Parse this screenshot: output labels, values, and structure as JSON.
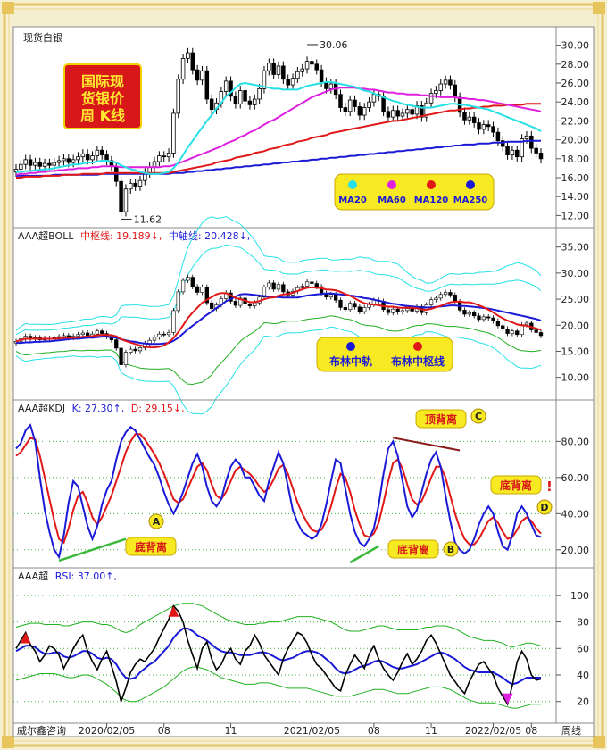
{
  "chart_data": [
    {
      "type": "candlestick",
      "title": "国际现货银价周 K线",
      "instrument_label": "现货白银",
      "y_ticks": [
        "30.00",
        "28.00",
        "26.00",
        "24.00",
        "22.00",
        "20.00",
        "18.00",
        "16.00",
        "14.00",
        "12.00"
      ],
      "ylim": [
        11,
        31
      ],
      "annotations": [
        {
          "label": "30.06",
          "value": 30.06
        },
        {
          "label": "11.62",
          "value": 11.62
        }
      ],
      "legend": [
        "MA20",
        "MA60",
        "MA120",
        "MA250"
      ],
      "series_colors": {
        "MA20": "#26e0e6",
        "MA60": "#e020e0",
        "MA120": "#e01818",
        "MA250": "#1a1ad6"
      },
      "close": [
        16.9,
        17.4,
        17.9,
        17.3,
        17.6,
        17.2,
        17.5,
        17.3,
        17.6,
        17.8,
        18.0,
        17.6,
        17.9,
        18.2,
        18.5,
        17.9,
        18.3,
        18.9,
        18.4,
        17.8,
        17.2,
        15.6,
        12.4,
        14.8,
        15.4,
        15.1,
        15.7,
        16.5,
        17.1,
        17.7,
        18.3,
        18.2,
        18.6,
        22.8,
        26.4,
        28.6,
        29.2,
        27.4,
        26.3,
        27.3,
        24.3,
        23.2,
        23.9,
        25.1,
        26.2,
        24.6,
        23.8,
        25.2,
        24.1,
        23.7,
        24.3,
        25.4,
        27.3,
        28.1,
        26.9,
        27.8,
        26.4,
        25.8,
        26.5,
        27.2,
        27.5,
        28.3,
        28.0,
        27.4,
        26.1,
        25.4,
        25.9,
        24.8,
        23.4,
        23.0,
        24.2,
        23.5,
        22.6,
        23.4,
        24.0,
        24.8,
        24.6,
        23.0,
        22.4,
        23.1,
        22.5,
        22.8,
        23.2,
        22.7,
        23.6,
        22.4,
        23.9,
        24.9,
        25.2,
        25.9,
        26.3,
        25.8,
        24.5,
        22.9,
        22.1,
        22.4,
        21.8,
        21.1,
        21.6,
        21.4,
        20.8,
        19.9,
        19.3,
        18.4,
        18.9,
        18.2,
        20.1,
        20.4,
        19.1,
        18.6,
        18.0
      ],
      "ma20": [
        16.6,
        16.6,
        16.7,
        16.7,
        16.8,
        16.8,
        16.9,
        16.9,
        17.0,
        17.1,
        17.2,
        17.3,
        17.4,
        17.4,
        17.5,
        17.6,
        17.6,
        17.7,
        17.8,
        17.8,
        17.7,
        17.6,
        17.3,
        17.1,
        16.9,
        16.8,
        16.6,
        16.5,
        16.4,
        16.4,
        16.4,
        16.5,
        16.6,
        17.0,
        17.6,
        18.4,
        19.2,
        19.9,
        20.6,
        21.3,
        22.0,
        22.6,
        23.3,
        23.9,
        24.6,
        25.0,
        25.5,
        25.9,
        26.0,
        25.9,
        25.8,
        25.7,
        25.6,
        25.5,
        25.4,
        25.4,
        25.3,
        25.3,
        25.3,
        25.3,
        25.5,
        25.7,
        25.8,
        25.9,
        26.0,
        26.1,
        26.1,
        26.0,
        25.9,
        25.8,
        25.7,
        25.6,
        25.4,
        25.2,
        25.1,
        24.9,
        24.7,
        24.5,
        24.3,
        24.1,
        24.0,
        23.8,
        23.7,
        23.6,
        23.5,
        23.4,
        23.4,
        23.4,
        23.5,
        23.6,
        23.7,
        23.8,
        23.8,
        23.7,
        23.7,
        23.6,
        23.5,
        23.4,
        23.3,
        23.2,
        23.0,
        22.8,
        22.6,
        22.4,
        22.2,
        22.0,
        21.8,
        21.6,
        21.4,
        21.2,
        20.9
      ],
      "ma60": [
        16.3,
        16.4,
        16.4,
        16.5,
        16.5,
        16.6,
        16.6,
        16.7,
        16.7,
        16.8,
        16.8,
        16.9,
        16.9,
        17.0,
        17.0,
        17.0,
        17.1,
        17.1,
        17.2,
        17.2,
        17.2,
        17.2,
        17.1,
        17.1,
        17.1,
        17.1,
        17.1,
        17.1,
        17.1,
        17.1,
        17.1,
        17.2,
        17.2,
        17.3,
        17.5,
        17.7,
        17.9,
        18.1,
        18.3,
        18.5,
        18.7,
        18.9,
        19.1,
        19.3,
        19.6,
        19.8,
        20.0,
        20.3,
        20.5,
        20.8,
        21.0,
        21.3,
        21.6,
        21.9,
        22.1,
        22.4,
        22.7,
        23.0,
        23.3,
        23.6,
        23.9,
        24.2,
        24.5,
        24.7,
        24.9,
        25.1,
        25.3,
        25.4,
        25.5,
        25.5,
        25.5,
        25.5,
        25.4,
        25.4,
        25.3,
        25.3,
        25.2,
        25.1,
        25.0,
        25.0,
        24.9,
        24.9,
        24.8,
        24.8,
        24.8,
        24.7,
        24.7,
        24.6,
        24.6,
        24.5,
        24.5,
        24.5,
        24.5,
        24.4,
        24.4,
        24.3,
        24.3,
        24.2,
        24.2,
        24.1,
        24.0,
        23.9,
        23.8,
        23.7,
        23.6,
        23.5,
        23.4,
        23.3,
        23.2,
        23.1,
        23.0
      ],
      "ma120": [
        16.0,
        16.0,
        16.1,
        16.1,
        16.1,
        16.1,
        16.2,
        16.2,
        16.2,
        16.2,
        16.3,
        16.3,
        16.3,
        16.3,
        16.4,
        16.4,
        16.4,
        16.4,
        16.4,
        16.5,
        16.5,
        16.5,
        16.5,
        16.5,
        16.5,
        16.5,
        16.5,
        16.5,
        16.5,
        16.5,
        16.5,
        16.5,
        16.5,
        16.6,
        16.7,
        16.8,
        16.9,
        17.0,
        17.1,
        17.2,
        17.3,
        17.4,
        17.6,
        17.7,
        17.8,
        17.9,
        18.1,
        18.2,
        18.3,
        18.4,
        18.6,
        18.7,
        18.8,
        19.0,
        19.1,
        19.2,
        19.4,
        19.5,
        19.6,
        19.8,
        19.9,
        20.0,
        20.2,
        20.3,
        20.4,
        20.5,
        20.7,
        20.8,
        20.9,
        21.0,
        21.1,
        21.2,
        21.3,
        21.4,
        21.5,
        21.6,
        21.7,
        21.8,
        21.9,
        22.0,
        22.0,
        22.1,
        22.2,
        22.3,
        22.4,
        22.5,
        22.6,
        22.7,
        22.8,
        22.9,
        23.0,
        23.1,
        23.1,
        23.2,
        23.3,
        23.3,
        23.4,
        23.4,
        23.5,
        23.5,
        23.6,
        23.6,
        23.6,
        23.7,
        23.7,
        23.7,
        23.7,
        23.8,
        23.8,
        23.8,
        23.8
      ],
      "ma250": [
        16.2,
        16.2,
        16.2,
        16.2,
        16.2,
        16.2,
        16.2,
        16.2,
        16.3,
        16.3,
        16.3,
        16.3,
        16.3,
        16.3,
        16.3,
        16.3,
        16.3,
        16.3,
        16.4,
        16.4,
        16.4,
        16.4,
        16.4,
        16.4,
        16.4,
        16.4,
        16.4,
        16.4,
        16.4,
        16.4,
        16.4,
        16.4,
        16.4,
        16.5,
        16.5,
        16.5,
        16.6,
        16.6,
        16.7,
        16.7,
        16.8,
        16.8,
        16.9,
        16.9,
        17.0,
        17.0,
        17.1,
        17.1,
        17.2,
        17.2,
        17.3,
        17.3,
        17.4,
        17.4,
        17.5,
        17.5,
        17.6,
        17.6,
        17.7,
        17.7,
        17.8,
        17.8,
        17.9,
        17.9,
        18.0,
        18.0,
        18.1,
        18.1,
        18.2,
        18.2,
        18.3,
        18.3,
        18.4,
        18.4,
        18.5,
        18.5,
        18.6,
        18.6,
        18.7,
        18.7,
        18.8,
        18.8,
        18.9,
        18.9,
        19.0,
        19.0,
        19.1,
        19.1,
        19.2,
        19.2,
        19.3,
        19.3,
        19.4,
        19.4,
        19.5,
        19.5,
        19.5,
        19.6,
        19.6,
        19.6,
        19.7,
        19.7,
        19.7,
        19.8,
        19.8,
        19.8,
        19.8,
        19.9,
        19.9,
        19.9,
        19.9
      ]
    },
    {
      "type": "line",
      "indicator_label": "AAA超BOLL",
      "mid_label": "中枢线: 19.189↓,",
      "axis_label": "中轴线: 20.428↓,",
      "y_ticks": [
        "35.00",
        "30.00",
        "25.00",
        "20.00",
        "15.00",
        "10.00"
      ],
      "ylim": [
        6,
        37
      ],
      "legend": [
        "布林中轨",
        "布林中枢线"
      ],
      "series_colors": {
        "中轨": "#1a1ad6",
        "中枢线": "#e01818",
        "上轨": "#26e0e6",
        "下轨": "#20b020"
      }
    },
    {
      "type": "line",
      "indicator_label": "AAA超KDJ",
      "k_label": "K: 27.30↑,",
      "d_label": "D: 29.15↓,",
      "y_ticks": [
        "80.00",
        "60.00",
        "40.00",
        "20.00"
      ],
      "ylim": [
        12,
        95
      ],
      "series_colors": {
        "K": "#1a1ad6",
        "D": "#e01818"
      },
      "annotations": [
        "底背离",
        "底背离",
        "顶背离",
        "底背离",
        "!",
        "A",
        "B",
        "C",
        "D"
      ],
      "K": [
        76,
        79,
        86,
        89,
        80,
        60,
        42,
        30,
        20,
        16,
        28,
        46,
        58,
        55,
        44,
        33,
        26,
        33,
        45,
        53,
        58,
        70,
        80,
        85,
        88,
        86,
        81,
        76,
        71,
        67,
        60,
        52,
        45,
        40,
        45,
        52,
        60,
        68,
        73,
        66,
        55,
        47,
        44,
        48,
        58,
        66,
        70,
        67,
        60,
        60,
        55,
        50,
        47,
        58,
        66,
        74,
        68,
        55,
        42,
        35,
        30,
        28,
        26,
        28,
        34,
        45,
        58,
        70,
        68,
        54,
        40,
        30,
        24,
        22,
        26,
        32,
        45,
        62,
        76,
        80,
        72,
        58,
        44,
        38,
        42,
        52,
        62,
        70,
        74,
        66,
        50,
        36,
        24,
        20,
        18,
        20,
        26,
        34,
        40,
        44,
        40,
        30,
        22,
        20,
        28,
        40,
        44,
        40,
        34,
        28,
        27
      ],
      "D": [
        72,
        74,
        78,
        82,
        81,
        72,
        60,
        48,
        36,
        26,
        24,
        32,
        42,
        50,
        52,
        46,
        38,
        34,
        38,
        44,
        50,
        58,
        66,
        74,
        80,
        84,
        84,
        81,
        77,
        73,
        68,
        62,
        55,
        48,
        46,
        48,
        54,
        60,
        66,
        68,
        64,
        56,
        50,
        48,
        52,
        58,
        64,
        66,
        64,
        62,
        59,
        55,
        52,
        54,
        59,
        65,
        67,
        62,
        54,
        46,
        40,
        35,
        31,
        30,
        31,
        36,
        44,
        54,
        62,
        60,
        52,
        42,
        34,
        28,
        27,
        29,
        35,
        46,
        58,
        68,
        70,
        65,
        56,
        48,
        45,
        47,
        53,
        60,
        66,
        66,
        60,
        50,
        40,
        32,
        26,
        23,
        23,
        26,
        31,
        36,
        38,
        35,
        30,
        26,
        27,
        31,
        36,
        38,
        36,
        32,
        29
      ]
    },
    {
      "type": "line",
      "indicator_label": "AAA超",
      "rsi_label": "RSI: 37.00↑,",
      "y_ticks": [
        "100",
        "80",
        "60",
        "40",
        "20"
      ],
      "ylim": [
        5,
        110
      ],
      "series_colors": {
        "RSI": "#000000",
        "MA": "#1a1ad6",
        "上轨": "#20b020",
        "下轨": "#20b020"
      },
      "x_ticks": [
        "2020/02/05",
        "08",
        "11",
        "2021/02/05",
        "08",
        "11",
        "2022/02/05",
        "08"
      ],
      "footer_left": "威尔鑫咨询",
      "footer_right": "周线",
      "RSI": [
        60,
        66,
        72,
        63,
        58,
        50,
        55,
        62,
        60,
        55,
        45,
        52,
        60,
        66,
        70,
        58,
        50,
        44,
        52,
        58,
        47,
        35,
        20,
        30,
        42,
        48,
        52,
        50,
        55,
        60,
        68,
        75,
        82,
        92,
        88,
        80,
        66,
        55,
        45,
        60,
        65,
        52,
        44,
        48,
        56,
        60,
        52,
        48,
        58,
        62,
        70,
        64,
        55,
        50,
        45,
        40,
        52,
        60,
        66,
        72,
        70,
        64,
        55,
        48,
        45,
        40,
        35,
        30,
        28,
        40,
        48,
        55,
        50,
        45,
        56,
        62,
        52,
        45,
        40,
        36,
        42,
        50,
        56,
        48,
        52,
        58,
        66,
        70,
        64,
        56,
        48,
        40,
        35,
        30,
        26,
        35,
        42,
        48,
        50,
        45,
        40,
        30,
        24,
        18,
        32,
        50,
        58,
        52,
        40,
        36,
        37
      ],
      "RSI_MA": [
        58,
        60,
        62,
        62,
        61,
        58,
        56,
        56,
        57,
        57,
        54,
        53,
        54,
        56,
        58,
        58,
        56,
        53,
        52,
        53,
        52,
        48,
        42,
        38,
        37,
        38,
        42,
        45,
        48,
        50,
        54,
        58,
        62,
        68,
        72,
        75,
        75,
        73,
        70,
        68,
        66,
        63,
        60,
        58,
        57,
        57,
        56,
        55,
        55,
        55,
        56,
        57,
        57,
        56,
        54,
        52,
        51,
        52,
        53,
        55,
        57,
        58,
        58,
        57,
        55,
        52,
        49,
        45,
        42,
        41,
        42,
        44,
        46,
        47,
        48,
        50,
        51,
        50,
        48,
        46,
        45,
        45,
        46,
        47,
        48,
        50,
        52,
        54,
        56,
        57,
        56,
        54,
        52,
        49,
        46,
        44,
        43,
        42,
        42,
        42,
        42,
        40,
        38,
        35,
        33,
        34,
        36,
        38,
        38,
        38,
        38
      ],
      "RSI_upper": [
        76,
        77,
        78,
        79,
        79,
        79,
        78,
        78,
        78,
        78,
        77,
        77,
        78,
        79,
        80,
        80,
        80,
        79,
        78,
        78,
        77,
        75,
        73,
        72,
        73,
        75,
        78,
        80,
        82,
        84,
        86,
        88,
        90,
        92,
        93,
        94,
        94,
        94,
        93,
        92,
        90,
        88,
        86,
        84,
        82,
        81,
        80,
        79,
        78,
        78,
        78,
        79,
        79,
        80,
        80,
        80,
        81,
        82,
        83,
        84,
        84,
        84,
        84,
        83,
        82,
        81,
        80,
        78,
        76,
        74,
        73,
        73,
        73,
        74,
        75,
        76,
        77,
        77,
        76,
        75,
        74,
        74,
        74,
        74,
        74,
        75,
        76,
        76,
        77,
        77,
        77,
        76,
        75,
        73,
        71,
        69,
        68,
        67,
        66,
        66,
        66,
        65,
        64,
        62,
        61,
        62,
        63,
        64,
        64,
        63,
        62
      ],
      "RSI_lower": [
        36,
        37,
        38,
        39,
        40,
        41,
        41,
        41,
        41,
        40,
        39,
        38,
        38,
        39,
        40,
        40,
        39,
        37,
        35,
        33,
        30,
        27,
        23,
        21,
        20,
        20,
        21,
        23,
        25,
        27,
        29,
        31,
        34,
        37,
        40,
        43,
        45,
        46,
        46,
        45,
        44,
        42,
        40,
        38,
        37,
        36,
        35,
        34,
        33,
        33,
        33,
        34,
        34,
        34,
        33,
        32,
        31,
        30,
        30,
        30,
        30,
        30,
        29,
        28,
        27,
        26,
        25,
        24,
        24,
        24,
        24,
        25,
        26,
        27,
        28,
        29,
        29,
        29,
        28,
        27,
        26,
        26,
        26,
        27,
        28,
        29,
        30,
        31,
        31,
        31,
        30,
        29,
        27,
        25,
        23,
        21,
        20,
        19,
        19,
        19,
        19,
        18,
        17,
        16,
        15,
        15,
        16,
        17,
        18,
        18,
        18
      ]
    }
  ]
}
